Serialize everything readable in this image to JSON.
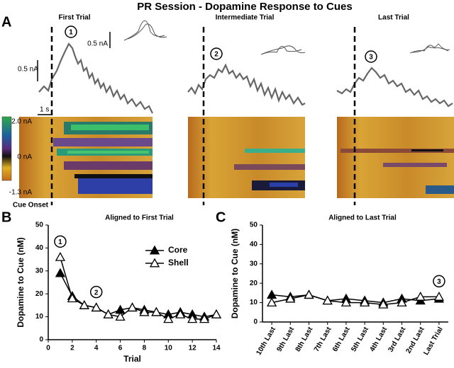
{
  "title": "PR Session - Dopamine Response to Cues",
  "panel_a": {
    "label": "A",
    "trials": [
      {
        "title": "First Trial",
        "marker": "1"
      },
      {
        "title": "Intermediate Trial",
        "marker": "2"
      },
      {
        "title": "Last Trial",
        "marker": "3"
      }
    ],
    "scale_bars": {
      "current": "0.5 nA",
      "inset_current": "0.5 nA",
      "time": "1 s"
    },
    "colorbar_ticks": [
      "2.0 nA",
      "0 nA",
      "-1.3 nA"
    ],
    "cue_label": "Cue Onset"
  },
  "chart_data": [
    {
      "type": "line",
      "panel_label": "B",
      "title": "Aligned to First Trial",
      "x_label": "Trial",
      "y_label": "Dopamine to Cue (nM)",
      "x": [
        1,
        2,
        3,
        4,
        5,
        6,
        7,
        8,
        9,
        10,
        11,
        12,
        13,
        14
      ],
      "series": [
        {
          "name": "Core",
          "color": "#000000",
          "marker": "filled-triangle",
          "values": [
            29,
            19,
            15,
            14,
            11,
            13,
            14,
            13,
            12,
            11,
            12,
            11,
            10,
            11
          ]
        },
        {
          "name": "Shell",
          "color": "#000000",
          "marker": "open-triangle",
          "values": [
            36,
            18,
            15,
            14,
            11,
            10,
            14,
            12,
            12,
            9,
            11,
            9,
            9,
            11
          ]
        }
      ],
      "xlim": [
        0,
        14
      ],
      "xticks": [
        0,
        2,
        4,
        6,
        8,
        10,
        12,
        14
      ],
      "ylim": [
        0,
        50
      ],
      "yticks": [
        0,
        10,
        20,
        30,
        40,
        50
      ],
      "legend": "upper right",
      "annotations": [
        {
          "text": "1",
          "x": 1
        },
        {
          "text": "2",
          "x": 4
        }
      ]
    },
    {
      "type": "line",
      "panel_label": "C",
      "title": "Aligned to Last Trial",
      "y_label": "Dopamine to Cue (nM)",
      "categories": [
        "10th Last",
        "9th Last",
        "8th Last",
        "7th Last",
        "6th Last",
        "5th Last",
        "4th Last",
        "3rd Last",
        "2nd Last",
        "Last Trial"
      ],
      "series": [
        {
          "name": "Core",
          "color": "#000000",
          "marker": "filled-triangle",
          "values": [
            14,
            13,
            14,
            11,
            12,
            11,
            10,
            12,
            11,
            12
          ]
        },
        {
          "name": "Shell",
          "color": "#000000",
          "marker": "open-triangle",
          "values": [
            10,
            12,
            14,
            11,
            10,
            10,
            9,
            10,
            13,
            13
          ]
        }
      ],
      "ylim": [
        0,
        50
      ],
      "yticks": [
        0,
        10,
        20,
        30,
        40,
        50
      ],
      "legend": false,
      "annotations": [
        {
          "text": "3",
          "category": "Last Trial"
        }
      ]
    }
  ]
}
